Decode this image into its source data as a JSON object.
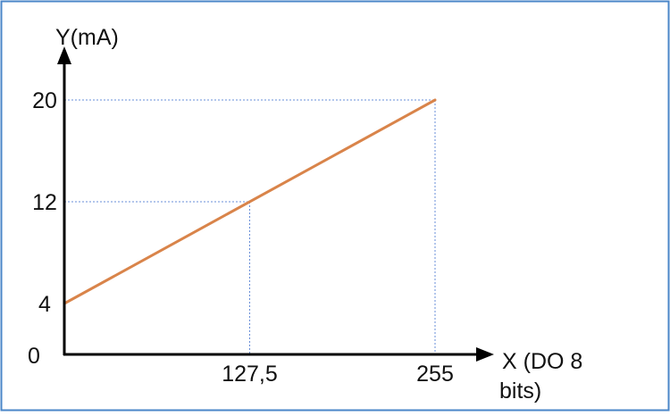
{
  "chart_data": {
    "type": "line",
    "title": "",
    "xlabel_line1": "X (DO 8",
    "xlabel_line2": "bits)",
    "ylabel": "Y(mA)",
    "x_origin_label": "0",
    "y_origin_label": "0",
    "x_ticks": [
      {
        "value": 127.5,
        "label": "127,5"
      },
      {
        "value": 255,
        "label": "255"
      }
    ],
    "y_ticks": [
      {
        "value": 4,
        "label": "4"
      },
      {
        "value": 12,
        "label": "12"
      },
      {
        "value": 20,
        "label": "20"
      }
    ],
    "xlim": [
      0,
      255
    ],
    "ylim": [
      0,
      20
    ],
    "grid": false,
    "guide_points": [
      [
        127.5,
        12
      ],
      [
        255,
        20
      ]
    ],
    "series": [
      {
        "x": [
          0,
          255
        ],
        "y": [
          4,
          20
        ]
      }
    ],
    "colors": {
      "series": "#d9844a",
      "guides": "#6a8fd8",
      "axes": "#000000",
      "frame": "#4a86c8"
    }
  }
}
